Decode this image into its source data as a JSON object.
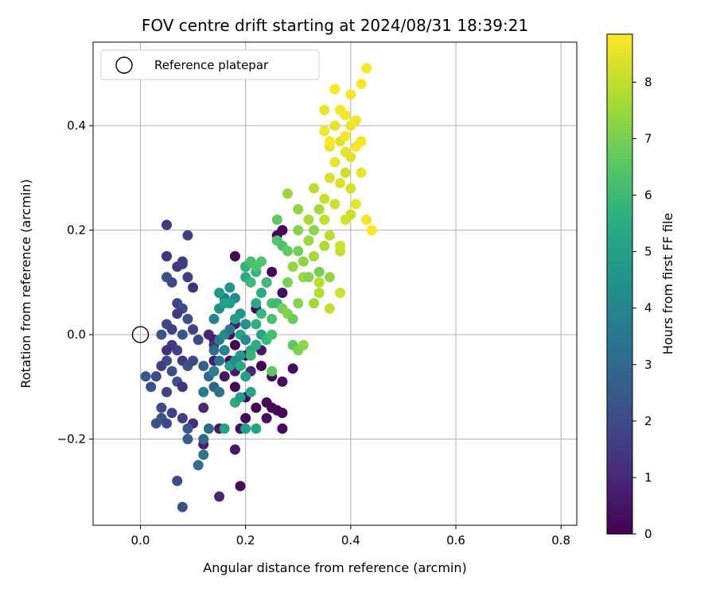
{
  "chart_data": {
    "type": "scatter",
    "title": "FOV centre drift starting at 2024/08/31 18:39:21",
    "xlabel": "Angular distance from reference (arcmin)",
    "ylabel": "Rotation from reference (arcmin)",
    "xlim": [
      -0.09,
      0.83
    ],
    "ylim": [
      -0.365,
      0.56
    ],
    "x_ticks": [
      0.0,
      0.2,
      0.4,
      0.6,
      0.8
    ],
    "x_tick_labels": [
      "0.0",
      "0.2",
      "0.4",
      "0.6",
      "0.8"
    ],
    "y_ticks": [
      -0.2,
      0.0,
      0.2,
      0.4
    ],
    "y_tick_labels": [
      "−0.2",
      "0.0",
      "0.2",
      "0.4"
    ],
    "grid": true,
    "legend": {
      "placement": "top-left",
      "entries": [
        "Reference platepar"
      ]
    },
    "reference_point": {
      "x": 0.0,
      "y": 0.0
    },
    "colorbar": {
      "label": "Hours from first FF file",
      "colormap": "viridis",
      "range": [
        0,
        8.85
      ],
      "ticks": [
        0,
        1,
        2,
        3,
        4,
        5,
        6,
        7,
        8
      ],
      "tick_labels": [
        "0",
        "1",
        "2",
        "3",
        "4",
        "5",
        "6",
        "7",
        "8"
      ]
    },
    "series": [
      {
        "color_value_unit": "hours",
        "points": [
          [
            0.26,
            0.19,
            0.1
          ],
          [
            0.27,
            0.2,
            0.2
          ],
          [
            0.18,
            0.15,
            0.1
          ],
          [
            0.2,
            0.13,
            0.2
          ],
          [
            0.24,
            0.1,
            0.2
          ],
          [
            0.25,
            0.12,
            0.1
          ],
          [
            0.27,
            0.08,
            0.3
          ],
          [
            0.22,
            0.05,
            0.2
          ],
          [
            0.2,
            0.02,
            0.3
          ],
          [
            0.22,
            -0.02,
            0.1
          ],
          [
            0.18,
            -0.02,
            0.2
          ],
          [
            0.17,
            -0.05,
            0.3
          ],
          [
            0.2,
            -0.04,
            0.2
          ],
          [
            0.23,
            -0.06,
            0.1
          ],
          [
            0.25,
            -0.08,
            0.2
          ],
          [
            0.27,
            -0.09,
            0.3
          ],
          [
            0.18,
            -0.1,
            0.1
          ],
          [
            0.2,
            -0.12,
            0.2
          ],
          [
            0.22,
            -0.14,
            0.1
          ],
          [
            0.24,
            -0.13,
            0.2
          ],
          [
            0.25,
            -0.14,
            0.1
          ],
          [
            0.26,
            -0.145,
            0.2
          ],
          [
            0.27,
            -0.15,
            0.1
          ],
          [
            0.2,
            -0.16,
            0.2
          ],
          [
            0.24,
            -0.16,
            0.3
          ],
          [
            0.27,
            -0.18,
            0.2
          ],
          [
            0.19,
            -0.29,
            0.3
          ],
          [
            0.18,
            -0.22,
            0.5
          ],
          [
            0.15,
            -0.31,
            0.9
          ],
          [
            0.15,
            -0.18,
            0.6
          ],
          [
            0.19,
            -0.18,
            0.4
          ],
          [
            0.29,
            -0.065,
            0.3
          ],
          [
            0.16,
            -0.08,
            0.5
          ],
          [
            0.18,
            -0.07,
            0.6
          ],
          [
            0.14,
            -0.05,
            0.7
          ],
          [
            0.16,
            -0.03,
            0.8
          ],
          [
            0.14,
            -0.01,
            0.5
          ],
          [
            0.13,
            0.0,
            0.9
          ],
          [
            0.18,
            0.02,
            0.7
          ],
          [
            0.17,
            0.0,
            0.4
          ],
          [
            0.21,
            -0.07,
            0.9
          ],
          [
            0.23,
            -0.03,
            0.5
          ],
          [
            0.12,
            -0.14,
            1.0
          ],
          [
            0.12,
            -0.21,
            0.8
          ],
          [
            0.1,
            -0.17,
            1.1
          ],
          [
            0.14,
            -0.02,
            1.2
          ],
          [
            0.05,
            0.21,
            1.5
          ],
          [
            0.08,
            0.135,
            1.8
          ],
          [
            0.09,
            0.19,
            1.6
          ],
          [
            0.05,
            0.15,
            1.2
          ],
          [
            0.07,
            0.13,
            1.4
          ],
          [
            0.08,
            0.14,
            1.6
          ],
          [
            0.1,
            0.09,
            1.3
          ],
          [
            0.09,
            0.11,
            1.6
          ],
          [
            0.06,
            0.1,
            1.9
          ],
          [
            0.05,
            0.11,
            2.1
          ],
          [
            0.07,
            0.06,
            1.8
          ],
          [
            0.08,
            0.05,
            2.0
          ],
          [
            0.07,
            0.04,
            1.5
          ],
          [
            0.09,
            0.03,
            2.2
          ],
          [
            0.05,
            0.02,
            1.9
          ],
          [
            0.04,
            0.0,
            2.3
          ],
          [
            0.06,
            0.01,
            1.7
          ],
          [
            0.08,
            0.0,
            2.4
          ],
          [
            0.1,
            0.01,
            1.8
          ],
          [
            0.11,
            -0.01,
            2.0
          ],
          [
            0.06,
            -0.02,
            1.5
          ],
          [
            0.05,
            -0.03,
            1.2
          ],
          [
            0.07,
            -0.03,
            1.7
          ],
          [
            0.05,
            -0.05,
            2.0
          ],
          [
            0.04,
            -0.06,
            1.6
          ],
          [
            0.06,
            -0.07,
            2.1
          ],
          [
            0.08,
            -0.05,
            1.4
          ],
          [
            0.09,
            -0.06,
            2.3
          ],
          [
            0.1,
            -0.05,
            1.9
          ],
          [
            0.07,
            -0.09,
            2.2
          ],
          [
            0.08,
            -0.1,
            1.3
          ],
          [
            0.05,
            -0.11,
            1.8
          ],
          [
            0.03,
            -0.08,
            2.0
          ],
          [
            0.02,
            -0.1,
            2.2
          ],
          [
            0.01,
            -0.08,
            2.4
          ],
          [
            0.04,
            -0.14,
            2.0
          ],
          [
            0.06,
            -0.15,
            1.7
          ],
          [
            0.04,
            -0.16,
            2.2
          ],
          [
            0.05,
            -0.17,
            1.9
          ],
          [
            0.03,
            -0.17,
            2.3
          ],
          [
            0.08,
            -0.16,
            1.6
          ],
          [
            0.09,
            -0.18,
            2.4
          ],
          [
            0.09,
            -0.2,
            2.6
          ],
          [
            0.07,
            -0.28,
            2.1
          ],
          [
            0.08,
            -0.33,
            2.2
          ],
          [
            0.12,
            -0.2,
            3.0
          ],
          [
            0.11,
            -0.25,
            3.2
          ],
          [
            0.12,
            -0.23,
            3.4
          ],
          [
            0.13,
            -0.18,
            3.0
          ],
          [
            0.12,
            -0.11,
            3.6
          ],
          [
            0.14,
            -0.1,
            2.8
          ],
          [
            0.15,
            -0.11,
            3.3
          ],
          [
            0.13,
            -0.08,
            3.0
          ],
          [
            0.12,
            -0.06,
            2.7
          ],
          [
            0.14,
            -0.07,
            3.8
          ],
          [
            0.15,
            -0.05,
            3.4
          ],
          [
            0.16,
            -0.03,
            4.0
          ],
          [
            0.14,
            -0.03,
            3.2
          ],
          [
            0.15,
            -0.01,
            3.7
          ],
          [
            0.16,
            0.0,
            4.3
          ],
          [
            0.17,
            0.01,
            3.5
          ],
          [
            0.14,
            0.03,
            4.0
          ],
          [
            0.15,
            0.05,
            4.4
          ],
          [
            0.16,
            0.07,
            3.8
          ],
          [
            0.15,
            0.08,
            4.8
          ],
          [
            0.18,
            0.07,
            4.2
          ],
          [
            0.17,
            0.06,
            4.9
          ],
          [
            0.19,
            0.04,
            4.5
          ],
          [
            0.18,
            0.03,
            5.0
          ],
          [
            0.2,
            0.02,
            4.6
          ],
          [
            0.19,
            0.0,
            5.1
          ],
          [
            0.2,
            -0.01,
            4.2
          ],
          [
            0.21,
            -0.03,
            5.3
          ],
          [
            0.19,
            -0.04,
            4.7
          ],
          [
            0.17,
            -0.06,
            5.0
          ],
          [
            0.18,
            -0.05,
            4.4
          ],
          [
            0.19,
            -0.06,
            5.4
          ],
          [
            0.2,
            -0.08,
            5.0
          ],
          [
            0.21,
            -0.11,
            5.2
          ],
          [
            0.18,
            -0.13,
            5.4
          ],
          [
            0.19,
            -0.12,
            4.9
          ],
          [
            0.16,
            -0.18,
            5.1
          ],
          [
            0.2,
            -0.18,
            5.0
          ],
          [
            0.22,
            -0.18,
            5.1
          ],
          [
            0.17,
            0.09,
            4.6
          ],
          [
            0.16,
            0.06,
            5.1
          ],
          [
            0.2,
            0.11,
            5.4
          ],
          [
            0.2,
            0.13,
            5.7
          ],
          [
            0.22,
            0.12,
            5.8
          ],
          [
            0.21,
            0.1,
            6.0
          ],
          [
            0.23,
            0.08,
            5.5
          ],
          [
            0.22,
            0.06,
            5.3
          ],
          [
            0.23,
            0.04,
            5.9
          ],
          [
            0.22,
            0.02,
            5.6
          ],
          [
            0.23,
            0.0,
            5.2
          ],
          [
            0.22,
            -0.02,
            5.5
          ],
          [
            0.21,
            -0.04,
            5.8
          ],
          [
            0.24,
            -0.01,
            6.0
          ],
          [
            0.25,
            0.06,
            6.2
          ],
          [
            0.26,
            0.06,
            6.0
          ],
          [
            0.25,
            0.03,
            6.3
          ],
          [
            0.24,
            0.1,
            6.1
          ],
          [
            0.21,
            0.14,
            6.2
          ],
          [
            0.23,
            0.14,
            6.4
          ],
          [
            0.22,
            0.13,
            6.3
          ],
          [
            0.26,
            0.22,
            6.6
          ],
          [
            0.26,
            0.18,
            6.4
          ],
          [
            0.27,
            0.17,
            6.3
          ],
          [
            0.28,
            0.16,
            6.7
          ],
          [
            0.25,
            0.0,
            6.2
          ],
          [
            0.25,
            -0.07,
            6.6
          ],
          [
            0.27,
            0.05,
            7.0
          ],
          [
            0.28,
            0.04,
            7.2
          ],
          [
            0.29,
            0.03,
            6.8
          ],
          [
            0.29,
            -0.02,
            6.6
          ],
          [
            0.3,
            -0.03,
            7.1
          ],
          [
            0.31,
            -0.02,
            7.3
          ],
          [
            0.28,
            0.1,
            7.0
          ],
          [
            0.3,
            0.06,
            7.2
          ],
          [
            0.29,
            0.13,
            7.4
          ],
          [
            0.31,
            0.14,
            7.3
          ],
          [
            0.31,
            0.11,
            7.5
          ],
          [
            0.3,
            0.16,
            6.9
          ],
          [
            0.3,
            0.2,
            7.2
          ],
          [
            0.32,
            0.18,
            7.5
          ],
          [
            0.33,
            0.2,
            7.3
          ],
          [
            0.33,
            0.15,
            7.6
          ],
          [
            0.34,
            0.12,
            7.0
          ],
          [
            0.35,
            0.17,
            7.7
          ],
          [
            0.36,
            0.11,
            7.4
          ],
          [
            0.34,
            0.1,
            7.9
          ],
          [
            0.33,
            0.06,
            7.6
          ],
          [
            0.36,
            0.05,
            8.0
          ],
          [
            0.34,
            0.08,
            7.8
          ],
          [
            0.38,
            0.08,
            8.2
          ],
          [
            0.32,
            0.11,
            7.2
          ],
          [
            0.28,
            0.27,
            7.5
          ],
          [
            0.3,
            0.24,
            7.4
          ],
          [
            0.32,
            0.22,
            7.7
          ],
          [
            0.34,
            0.24,
            7.6
          ],
          [
            0.33,
            0.28,
            7.9
          ],
          [
            0.35,
            0.22,
            8.0
          ],
          [
            0.36,
            0.19,
            7.9
          ],
          [
            0.35,
            0.26,
            8.1
          ],
          [
            0.37,
            0.25,
            8.2
          ],
          [
            0.36,
            0.3,
            8.3
          ],
          [
            0.38,
            0.29,
            8.4
          ],
          [
            0.39,
            0.31,
            8.2
          ],
          [
            0.4,
            0.28,
            8.3
          ],
          [
            0.41,
            0.25,
            8.5
          ],
          [
            0.4,
            0.23,
            8.1
          ],
          [
            0.39,
            0.22,
            8.3
          ],
          [
            0.38,
            0.16,
            8.0
          ],
          [
            0.38,
            0.17,
            8.2
          ],
          [
            0.4,
            0.34,
            8.4
          ],
          [
            0.39,
            0.35,
            8.5
          ],
          [
            0.37,
            0.33,
            8.6
          ],
          [
            0.38,
            0.37,
            8.5
          ],
          [
            0.39,
            0.38,
            8.7
          ],
          [
            0.4,
            0.4,
            8.6
          ],
          [
            0.41,
            0.36,
            8.8
          ],
          [
            0.41,
            0.41,
            8.7
          ],
          [
            0.37,
            0.4,
            8.5
          ],
          [
            0.36,
            0.36,
            8.6
          ],
          [
            0.35,
            0.39,
            8.7
          ],
          [
            0.35,
            0.43,
            8.6
          ],
          [
            0.37,
            0.47,
            8.8
          ],
          [
            0.38,
            0.43,
            8.7
          ],
          [
            0.39,
            0.42,
            8.8
          ],
          [
            0.4,
            0.46,
            8.7
          ],
          [
            0.42,
            0.48,
            8.8
          ],
          [
            0.43,
            0.51,
            8.8
          ],
          [
            0.42,
            0.31,
            8.6
          ],
          [
            0.43,
            0.22,
            8.7
          ],
          [
            0.44,
            0.2,
            8.8
          ],
          [
            0.38,
            0.08,
            8.2
          ],
          [
            0.36,
            0.37,
            8.8
          ],
          [
            0.42,
            0.37,
            8.7
          ]
        ]
      }
    ]
  }
}
